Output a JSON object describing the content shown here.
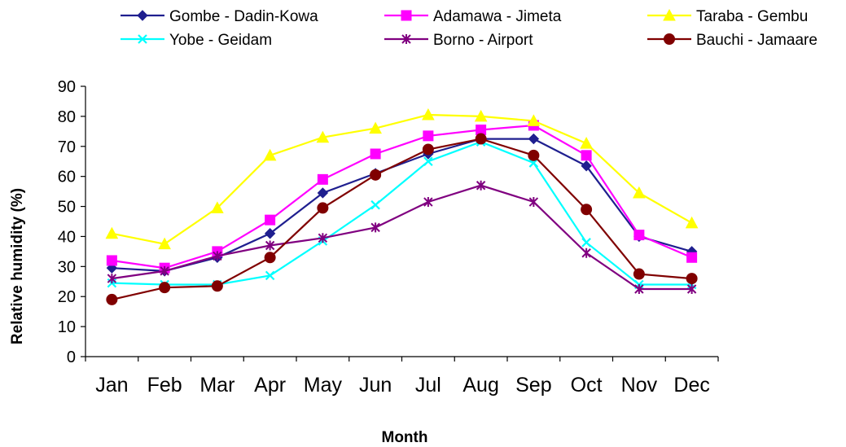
{
  "chart_data": {
    "type": "line",
    "xlabel": "Month",
    "ylabel": "Relative humidity (%)",
    "ylim": [
      0,
      90
    ],
    "yticks": [
      0,
      10,
      20,
      30,
      40,
      50,
      60,
      70,
      80,
      90
    ],
    "grid": false,
    "legend_position": "top",
    "categories": [
      "Jan",
      "Feb",
      "Mar",
      "Apr",
      "May",
      "Jun",
      "Jul",
      "Aug",
      "Sep",
      "Oct",
      "Nov",
      "Dec"
    ],
    "series": [
      {
        "name": "Gombe - Dadin-Kowa",
        "color": "#1f1f8f",
        "marker": "diamond",
        "values": [
          29.5,
          28.5,
          33,
          41,
          54.5,
          61,
          67.5,
          72.5,
          72.5,
          63.5,
          40,
          35
        ]
      },
      {
        "name": "Adamawa - Jimeta",
        "color": "#ff00ff",
        "marker": "square",
        "values": [
          32,
          29.5,
          35,
          45.5,
          59,
          67.5,
          73.5,
          75.5,
          77,
          67,
          40.5,
          33
        ]
      },
      {
        "name": "Taraba - Gembu",
        "color": "#ffff00",
        "marker": "triangle",
        "values": [
          41,
          37.5,
          49.5,
          67,
          73,
          76,
          80.5,
          80,
          78.5,
          71,
          54.5,
          44.5
        ]
      },
      {
        "name": "Yobe - Geidam",
        "color": "#00ffff",
        "marker": "x",
        "values": [
          24.5,
          24,
          24,
          27,
          38.5,
          50.5,
          65,
          71.5,
          64.5,
          38,
          24,
          24
        ]
      },
      {
        "name": "Borno - Airport",
        "color": "#800080",
        "marker": "asterisk",
        "values": [
          26,
          28.5,
          33.5,
          37,
          39.5,
          43,
          51.5,
          57,
          51.5,
          34.5,
          22.5,
          22.5
        ]
      },
      {
        "name": "Bauchi - Jamaare",
        "color": "#800000",
        "marker": "circle",
        "values": [
          19,
          23,
          23.5,
          33,
          49.5,
          60.5,
          69,
          72.5,
          67,
          49,
          27.5,
          26
        ]
      }
    ]
  }
}
